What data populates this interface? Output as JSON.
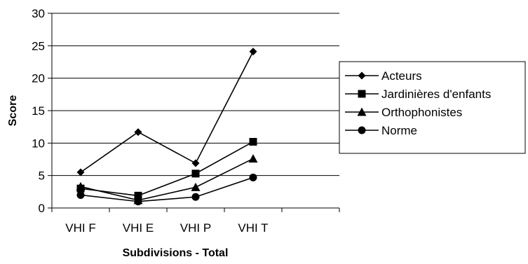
{
  "chart_data": {
    "type": "line",
    "title": "",
    "xlabel": "Subdivisions - Total",
    "ylabel": "Score",
    "categories": [
      "VHI F",
      "VHI E",
      "VHI P",
      "VHI T"
    ],
    "extra_slots": 1,
    "ylim": [
      0,
      30
    ],
    "yticks": [
      0,
      5,
      10,
      15,
      20,
      25,
      30
    ],
    "grid": "horizontal",
    "legend_position": "right",
    "series": [
      {
        "name": "Acteurs",
        "marker": "diamond",
        "values": [
          5.5,
          11.7,
          6.9,
          24.1
        ]
      },
      {
        "name": "Jardinières d'enfants",
        "marker": "square",
        "values": [
          3.0,
          1.9,
          5.3,
          10.2
        ]
      },
      {
        "name": "Orthophonistes",
        "marker": "triangle",
        "values": [
          3.3,
          1.2,
          3.2,
          7.6
        ]
      },
      {
        "name": "Norme",
        "marker": "circle",
        "values": [
          2.0,
          1.0,
          1.7,
          4.7
        ]
      }
    ],
    "colors": {
      "line": "#000000",
      "grid": "#000000",
      "background": "#ffffff"
    }
  }
}
